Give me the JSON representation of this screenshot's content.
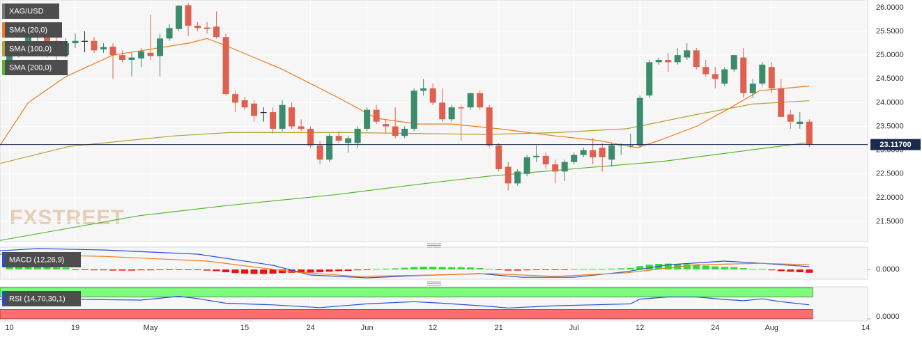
{
  "chart_data": [
    {
      "type": "candlestick",
      "name": "XAG/USD",
      "up_color": "#3b8b6d",
      "down_color": "#e0604f",
      "doji_color": "#222222",
      "open": [
        24.85,
        25.05,
        25.2,
        25.4,
        25.45,
        25.3,
        25.0,
        25.25,
        25.3,
        25.3,
        25.12,
        25.18,
        25.0,
        24.9,
        24.93,
        25.05,
        24.98,
        25.35,
        25.55,
        26.05,
        25.62,
        25.58,
        25.6,
        25.38,
        24.18,
        24.05,
        23.98,
        23.8,
        23.8,
        23.45,
        23.9,
        23.5,
        23.45,
        23.1,
        22.8,
        23.3,
        23.15,
        23.15,
        23.45,
        23.85,
        23.55,
        23.5,
        23.3,
        23.45,
        24.25,
        24.3,
        24.0,
        23.65,
        23.9,
        23.9,
        24.2,
        23.9,
        23.1,
        22.65,
        22.3,
        22.5,
        22.85,
        22.88,
        22.7,
        22.55,
        22.75,
        22.9,
        23.0,
        23.05,
        22.8,
        23.1,
        23.08,
        23.1,
        24.15,
        24.85,
        24.9,
        24.85,
        24.95,
        25.1,
        24.75,
        24.6,
        24.4,
        24.7,
        24.95,
        24.2,
        24.4,
        24.75,
        24.3,
        23.75,
        23.55,
        23.6
      ],
      "high": [
        25.15,
        25.3,
        25.5,
        25.55,
        25.5,
        25.4,
        25.35,
        25.45,
        25.5,
        25.38,
        25.25,
        25.25,
        25.1,
        25.05,
        25.15,
        25.85,
        25.45,
        25.65,
        26.05,
        26.1,
        25.7,
        25.7,
        25.92,
        25.45,
        24.25,
        24.12,
        24.05,
        23.9,
        23.9,
        24.05,
        24.0,
        23.65,
        23.5,
        23.2,
        23.35,
        23.4,
        23.3,
        23.5,
        23.9,
        23.95,
        23.65,
        23.9,
        23.5,
        24.3,
        24.5,
        24.4,
        24.3,
        23.95,
        23.95,
        24.2,
        24.25,
        23.95,
        23.15,
        22.75,
        22.6,
        22.9,
        23.1,
        22.95,
        22.8,
        22.8,
        22.95,
        23.05,
        23.25,
        23.15,
        23.15,
        23.15,
        23.35,
        24.15,
        24.9,
        24.95,
        25.05,
        25.15,
        25.25,
        25.15,
        24.9,
        24.75,
        24.75,
        25.0,
        25.15,
        24.5,
        24.85,
        24.85,
        24.5,
        23.85,
        23.8,
        23.65
      ],
      "low": [
        24.75,
        24.95,
        25.1,
        25.3,
        24.95,
        24.9,
        24.95,
        25.15,
        25.06,
        25.05,
        25.05,
        24.5,
        24.85,
        24.55,
        24.75,
        24.9,
        24.55,
        25.3,
        25.5,
        25.4,
        25.5,
        25.45,
        25.35,
        24.15,
        23.8,
        23.85,
        23.6,
        23.6,
        23.35,
        23.4,
        23.45,
        23.4,
        23.05,
        22.7,
        22.75,
        23.15,
        22.95,
        23.05,
        23.4,
        23.55,
        23.35,
        23.25,
        23.25,
        23.4,
        24.15,
        23.95,
        23.6,
        23.6,
        23.2,
        23.85,
        23.85,
        23.05,
        22.55,
        22.15,
        22.25,
        22.45,
        22.75,
        22.6,
        22.3,
        22.35,
        22.7,
        22.85,
        22.7,
        22.55,
        22.65,
        22.9,
        23.05,
        23.05,
        24.1,
        24.8,
        24.65,
        24.8,
        24.9,
        24.7,
        24.55,
        24.3,
        24.35,
        24.65,
        24.1,
        24.1,
        24.35,
        24.2,
        23.7,
        23.45,
        23.45,
        23.07
      ],
      "close": [
        25.05,
        25.2,
        25.4,
        25.45,
        25.05,
        25.0,
        25.25,
        25.3,
        25.3,
        25.1,
        25.17,
        25.0,
        24.9,
        24.95,
        25.08,
        24.98,
        25.35,
        25.57,
        26.04,
        25.62,
        25.57,
        25.55,
        25.38,
        24.18,
        24.0,
        23.9,
        23.72,
        23.8,
        23.45,
        23.95,
        23.5,
        23.45,
        23.1,
        22.8,
        23.3,
        23.2,
        23.25,
        23.45,
        23.85,
        23.6,
        23.5,
        23.3,
        23.45,
        24.25,
        24.3,
        24.0,
        23.65,
        23.9,
        23.88,
        24.2,
        23.9,
        23.1,
        22.6,
        22.3,
        22.55,
        22.85,
        22.88,
        22.7,
        22.55,
        22.75,
        22.9,
        23.0,
        22.85,
        22.85,
        23.1,
        23.12,
        23.1,
        24.1,
        24.85,
        24.9,
        24.85,
        25.0,
        25.1,
        24.75,
        24.6,
        24.5,
        24.7,
        25.0,
        24.2,
        24.4,
        24.8,
        24.3,
        23.7,
        23.6,
        23.6,
        23.117
      ],
      "overlays": [
        {
          "name": "SMA (20,0)",
          "color": "#f07b1c",
          "x": [
            -1,
            2,
            6,
            11,
            19,
            21,
            23,
            29,
            35,
            39,
            43.4,
            47,
            52,
            58,
            62.7,
            66.7,
            69,
            73,
            76.7,
            79.7,
            85
          ],
          "values": [
            23.1,
            24.0,
            24.55,
            25.0,
            25.25,
            25.35,
            25.2,
            24.7,
            24.1,
            23.67,
            23.55,
            23.55,
            23.45,
            23.3,
            23.2,
            23.05,
            23.2,
            23.5,
            23.9,
            24.25,
            24.35
          ]
        },
        {
          "name": "SMA (100,0)",
          "color": "#b3a22b",
          "x": [
            -1,
            6.4,
            17.5,
            23.4,
            36,
            50.8,
            58.2,
            65.6,
            73,
            79,
            85
          ],
          "values": [
            22.72,
            23.08,
            23.3,
            23.37,
            23.37,
            23.33,
            23.37,
            23.45,
            23.75,
            23.97,
            24.04
          ]
        },
        {
          "name": "SMA (200,0)",
          "color": "#55b82c",
          "x": [
            -1,
            13.8,
            23.4,
            34.5,
            43.4,
            50.8,
            61.9,
            69.3,
            79,
            85
          ],
          "values": [
            21.1,
            21.62,
            21.84,
            22.06,
            22.28,
            22.45,
            22.64,
            22.76,
            23.01,
            23.16
          ]
        }
      ],
      "last_price": {
        "value": 23.117,
        "label": "23.11700"
      },
      "watermark": "FXSTREET",
      "xlim": [
        -1,
        91.2
      ],
      "xticks": [
        {
          "value": 0,
          "label": "10"
        },
        {
          "value": 7,
          "label": "19"
        },
        {
          "value": 15,
          "label": "May"
        },
        {
          "value": 25,
          "label": "15"
        },
        {
          "value": 32,
          "label": "24"
        },
        {
          "value": 38,
          "label": "Jun"
        },
        {
          "value": 45,
          "label": "12"
        },
        {
          "value": 52,
          "label": "21"
        },
        {
          "value": 60,
          "label": "Jul"
        },
        {
          "value": 67,
          "label": "12"
        },
        {
          "value": 75,
          "label": "24"
        },
        {
          "value": 81,
          "label": "Aug"
        },
        {
          "value": 91,
          "label": "14"
        }
      ],
      "ylim": [
        21.075,
        26.16
      ],
      "yticks": [
        {
          "value": 26,
          "label": "26.0000"
        },
        {
          "value": 25.5,
          "label": "25.5000"
        },
        {
          "value": 25,
          "label": "25.0000"
        },
        {
          "value": 24.5,
          "label": "24.5000"
        },
        {
          "value": 24,
          "label": "24.0000"
        },
        {
          "value": 23.5,
          "label": "23.5000"
        },
        {
          "value": 23,
          "label": "23.0000"
        },
        {
          "value": 22.5,
          "label": "22.5000"
        },
        {
          "value": 22,
          "label": "22.0000"
        },
        {
          "value": 21.5,
          "label": "21.5000"
        }
      ],
      "grid": true
    },
    {
      "type": "macd",
      "name": "MACD (12,26,9)",
      "label_color": "#2450d8",
      "series": [
        {
          "color": "#2450d8",
          "x": [
            -1,
            3,
            10,
            20,
            28,
            32,
            38,
            43.4,
            50,
            54.5,
            60,
            65.6,
            70,
            76,
            80,
            85
          ],
          "values": [
            0.67,
            0.75,
            0.7,
            0.55,
            0.15,
            -0.2,
            -0.3,
            -0.22,
            -0.15,
            -0.28,
            -0.28,
            -0.08,
            0.17,
            0.3,
            0.22,
            0.1
          ]
        },
        {
          "color": "#f07b1c",
          "x": [
            -1,
            10,
            21,
            30,
            37,
            45,
            51,
            58,
            65.6,
            73,
            80,
            85
          ],
          "values": [
            0.55,
            0.47,
            0.3,
            -0.08,
            -0.25,
            -0.2,
            -0.15,
            -0.25,
            -0.12,
            0.17,
            0.22,
            0.17
          ]
        }
      ],
      "histogram": {
        "up_color": "#2fdc2f",
        "down_color": "#ee1111",
        "values": [
          0.12,
          0.12,
          0.11,
          0.1,
          0.09,
          0.07,
          0.06,
          -0.01,
          -0.02,
          -0.03,
          -0.03,
          -0.04,
          -0.04,
          -0.04,
          -0.03,
          -0.03,
          -0.02,
          -0.02,
          -0.01,
          -0.01,
          -0.02,
          -0.04,
          -0.06,
          -0.1,
          -0.13,
          -0.15,
          -0.16,
          -0.16,
          -0.15,
          -0.13,
          -0.12,
          -0.12,
          -0.11,
          -0.1,
          -0.08,
          -0.06,
          -0.05,
          -0.03,
          -0.01,
          0.02,
          0.03,
          0.04,
          0.06,
          0.09,
          0.1,
          0.1,
          0.09,
          0.08,
          0.08,
          0.07,
          0.05,
          0.02,
          -0.02,
          -0.04,
          -0.04,
          -0.03,
          -0.02,
          -0.02,
          -0.02,
          -0.01,
          0.0,
          0.01,
          0.02,
          0.02,
          0.03,
          0.04,
          0.05,
          0.12,
          0.17,
          0.2,
          0.21,
          0.2,
          0.19,
          0.17,
          0.14,
          0.11,
          0.09,
          0.08,
          0.05,
          0.02,
          0.0,
          -0.03,
          -0.06,
          -0.08,
          -0.1,
          -0.12
        ]
      },
      "ylim": [
        -0.35,
        0.8
      ],
      "yticks": [
        {
          "value": 0,
          "label": "0.0000"
        }
      ]
    },
    {
      "type": "rsi",
      "name": "RSI (14,70,30,1)",
      "label_color": "#2450d8",
      "bands": [
        {
          "from": 70,
          "to": 100,
          "color": "#7dfb7d"
        },
        {
          "from": 0,
          "to": 30,
          "color": "#ff6e6e"
        }
      ],
      "series": [
        {
          "color": "#2450d8",
          "x": [
            -1,
            3,
            8,
            14,
            18,
            20,
            23,
            28,
            33,
            38,
            43,
            46,
            51,
            53,
            58,
            62,
            66,
            67,
            70,
            73,
            76,
            78,
            80,
            82,
            85
          ],
          "values": [
            62,
            68,
            62,
            60,
            72,
            65,
            50,
            45,
            36,
            48,
            55,
            50,
            40,
            35,
            42,
            45,
            48,
            63,
            70,
            70,
            62,
            58,
            64,
            55,
            45
          ]
        }
      ],
      "ylim": [
        0,
        100
      ],
      "yticks": [
        {
          "value": 0,
          "label": "0.0000"
        }
      ]
    }
  ]
}
